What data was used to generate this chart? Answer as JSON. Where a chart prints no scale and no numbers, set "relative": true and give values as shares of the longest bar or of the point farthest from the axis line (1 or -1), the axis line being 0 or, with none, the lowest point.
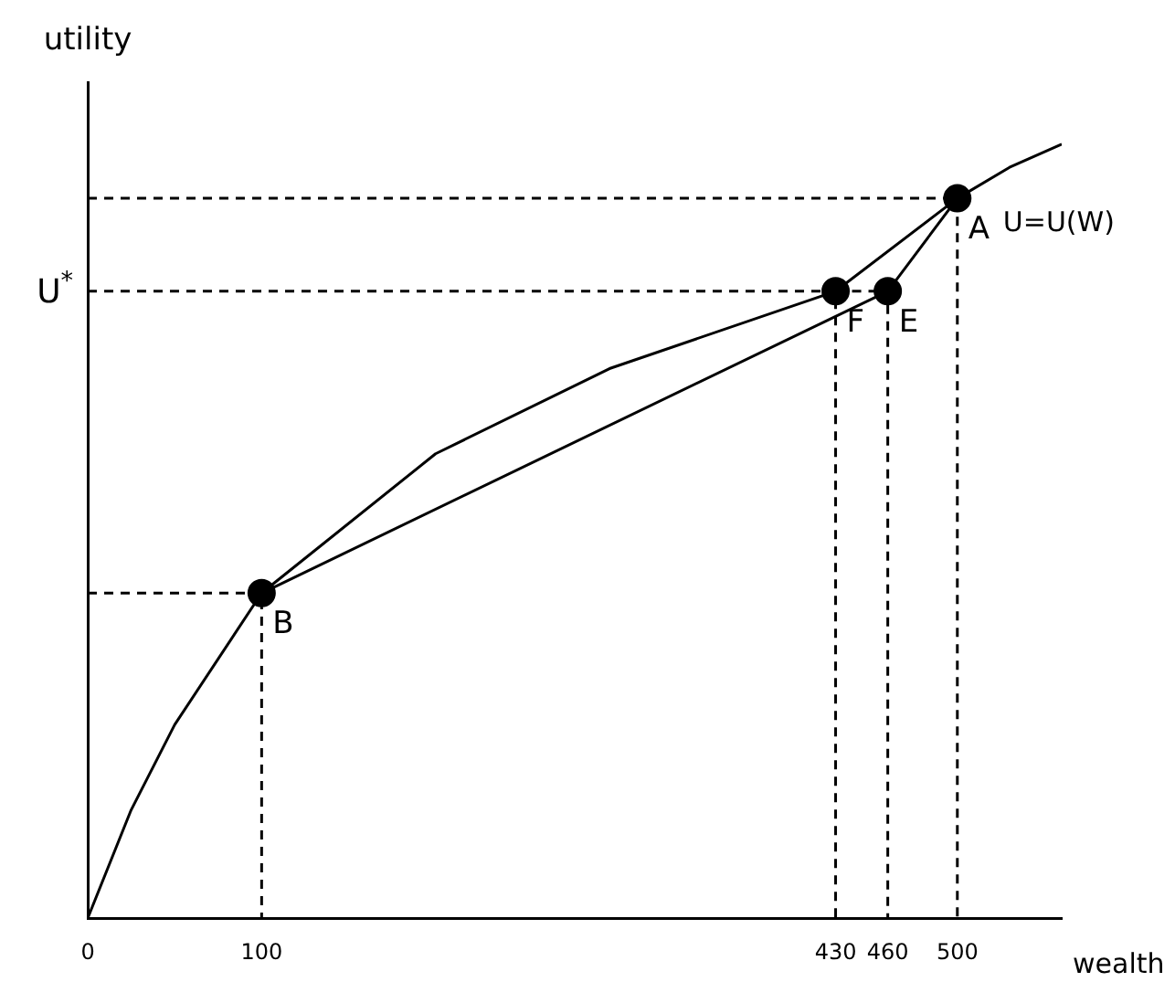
{
  "chart_data": {
    "type": "line",
    "relative": true,
    "xlabel": "wealth",
    "ylabel": "utility",
    "xlim": [
      0,
      560
    ],
    "xticks": [
      0,
      100,
      430,
      460,
      500
    ],
    "grid": false,
    "marker": "none",
    "series": [
      {
        "name": "U=U(W)",
        "color": "#000000",
        "x": [
          0,
          25,
          50,
          100,
          200,
          300,
          430,
          500,
          530,
          560
        ],
        "values": [
          0,
          0.14,
          0.25,
          0.42,
          0.6,
          0.71,
          0.81,
          0.93,
          0.97,
          1
        ]
      },
      {
        "color": "#000000",
        "x": [
          100,
          460,
          500
        ],
        "values": [
          0.42,
          0.81,
          0.93
        ]
      },
      {
        "type": "line",
        "line_style": "dashed",
        "color": "#000000",
        "x": [
          0,
          500,
          500
        ],
        "values": [
          0.93,
          0.93,
          0
        ]
      },
      {
        "type": "line",
        "line_style": "dashed",
        "color": "#000000",
        "x": [
          0,
          430,
          430
        ],
        "values": [
          0.81,
          0.81,
          0
        ]
      },
      {
        "type": "line",
        "line_style": "dashed",
        "color": "#000000",
        "x": [
          430,
          460,
          460
        ],
        "values": [
          0.81,
          0.81,
          0
        ]
      },
      {
        "type": "line",
        "line_style": "dashed",
        "color": "#000000",
        "x": [
          0,
          100,
          100
        ],
        "values": [
          0.42,
          0.42,
          0
        ]
      },
      {
        "type": "scatter",
        "marker": "circle",
        "color": "#000000",
        "x": [
          500,
          430,
          460,
          100
        ],
        "values": [
          0.93,
          0.81,
          0.81,
          0.42
        ]
      }
    ],
    "annotations": [
      {
        "text": "A",
        "x": 500,
        "y": 0.93
      },
      {
        "text": "F",
        "x": 430,
        "y": 0.81
      },
      {
        "text": "E",
        "x": 460,
        "y": 0.81
      },
      {
        "text": "B",
        "x": 100,
        "y": 0.42
      },
      {
        "text": "U$^{*}$",
        "x": 0,
        "y": 0.81
      }
    ]
  }
}
